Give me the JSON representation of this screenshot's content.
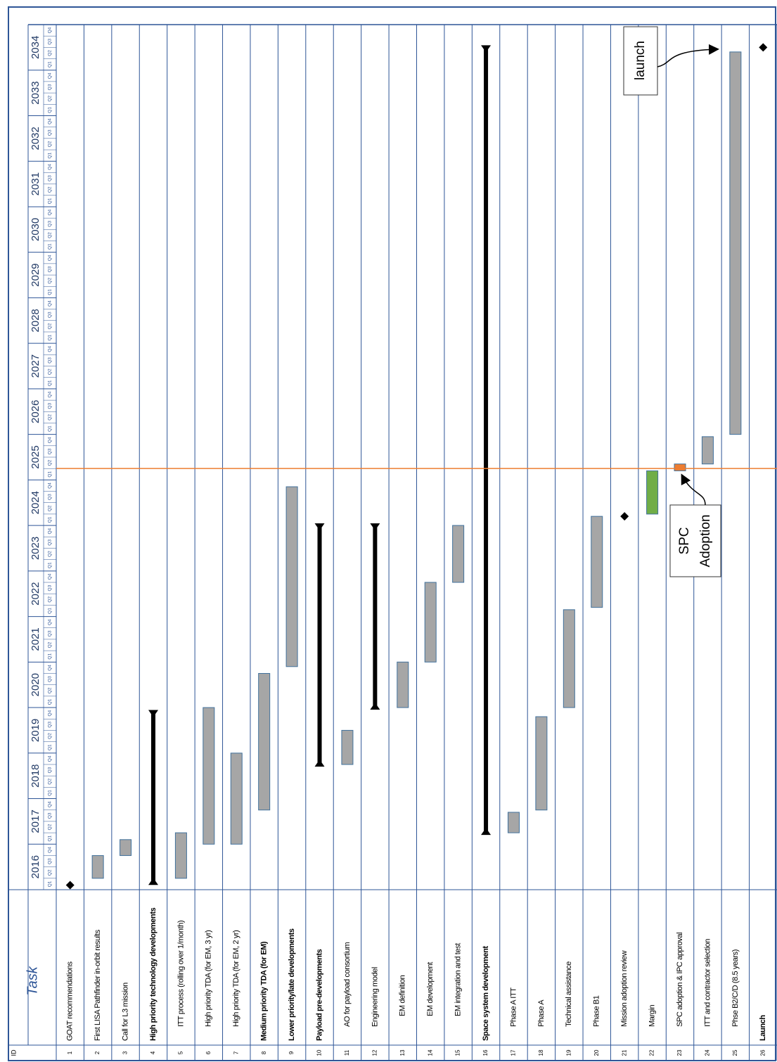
{
  "chart_data": {
    "type": "gantt",
    "id_header": "ID",
    "task_header": "Task",
    "xlim": [
      2016,
      2035
    ],
    "xticks": [
      2016,
      2017,
      2018,
      2019,
      2020,
      2021,
      2022,
      2023,
      2024,
      2025,
      2026,
      2027,
      2028,
      2029,
      2030,
      2031,
      2032,
      2033,
      2034
    ],
    "quarters": [
      "Q1",
      "Q2",
      "Q3",
      "Q4"
    ],
    "bar_color": "#a6a6a6",
    "summary_color": "#000000",
    "marker": {
      "value": 2025.25,
      "color": "#ed7d31"
    },
    "tasks": [
      {
        "id": 1,
        "name": "GOAT recommendations",
        "start": 2016.1,
        "milestone": true,
        "level": 0
      },
      {
        "id": 2,
        "name": "First LISA Pathfinder in-orbit results",
        "start": 2016.25,
        "end": 2016.75,
        "level": 0
      },
      {
        "id": 3,
        "name": "Call for L3 mission",
        "start": 2016.75,
        "end": 2017.1,
        "level": 0
      },
      {
        "id": 4,
        "name": "High priority technology developments",
        "start": 2016.15,
        "end": 2019.9,
        "summary": true,
        "bold": true,
        "level": 0
      },
      {
        "id": 5,
        "name": "ITT process (rolling over 1/month)",
        "start": 2016.25,
        "end": 2017.25,
        "level": 1
      },
      {
        "id": 6,
        "name": "High priority TDA (for EM, 3 yr)",
        "start": 2017.0,
        "end": 2020.0,
        "level": 1
      },
      {
        "id": 7,
        "name": "High priority TDA (for EM, 2 yr)",
        "start": 2017.0,
        "end": 2019.0,
        "level": 1
      },
      {
        "id": 8,
        "name": "Medium priority TDA (for EM)",
        "start": 2017.75,
        "end": 2020.75,
        "bold": true,
        "level": 0
      },
      {
        "id": 9,
        "name": "Lower priority/late developments",
        "start": 2020.9,
        "end": 2024.85,
        "bold": true,
        "level": 0
      },
      {
        "id": 10,
        "name": "Payload pre-developments",
        "start": 2018.75,
        "end": 2024.0,
        "summary": true,
        "bold": true,
        "level": 0
      },
      {
        "id": 11,
        "name": "AO for payload consortium",
        "start": 2018.75,
        "end": 2019.5,
        "level": 1
      },
      {
        "id": 12,
        "name": "Engineering model",
        "start": 2020.0,
        "end": 2024.0,
        "summary": true,
        "level": 1
      },
      {
        "id": 13,
        "name": "EM definition",
        "start": 2020.0,
        "end": 2021.0,
        "level": 2
      },
      {
        "id": 14,
        "name": "EM development",
        "start": 2021.0,
        "end": 2022.75,
        "level": 2
      },
      {
        "id": 15,
        "name": "EM integration and test",
        "start": 2022.75,
        "end": 2024.0,
        "level": 2
      },
      {
        "id": 16,
        "name": "Space system development",
        "start": 2017.25,
        "end": 2034.5,
        "summary": true,
        "bold": true,
        "level": 0
      },
      {
        "id": 17,
        "name": "Phase A ITT",
        "start": 2017.25,
        "end": 2017.7,
        "level": 1
      },
      {
        "id": 18,
        "name": "Phase A",
        "start": 2017.75,
        "end": 2019.8,
        "level": 1
      },
      {
        "id": 19,
        "name": "Technical assistance",
        "start": 2020.0,
        "end": 2022.15,
        "level": 1
      },
      {
        "id": 20,
        "name": "Phase B1",
        "start": 2022.2,
        "end": 2024.2,
        "level": 1
      },
      {
        "id": 21,
        "name": "Mission adoption review",
        "start": 2024.2,
        "milestone": true,
        "level": 1
      },
      {
        "id": 22,
        "name": "Margin",
        "start": 2024.25,
        "end": 2025.2,
        "color": "#70ad47",
        "level": 1
      },
      {
        "id": 23,
        "name": "SPC adoption & IPC approval",
        "start": 2025.2,
        "end": 2025.35,
        "color": "#ed7d31",
        "level": 1
      },
      {
        "id": 24,
        "name": "ITT and contractor selection",
        "start": 2025.35,
        "end": 2025.95,
        "level": 1
      },
      {
        "id": 25,
        "name": "Phse B2/C/D (8.5 years)",
        "start": 2026.0,
        "end": 2034.4,
        "level": 1
      },
      {
        "id": 26,
        "name": "Launch",
        "start": 2034.5,
        "milestone": true,
        "bold": true,
        "level": 0
      }
    ],
    "annotations": [
      {
        "lines": [
          "launch"
        ]
      },
      {
        "lines": [
          "SPC",
          "Adoption"
        ]
      }
    ]
  }
}
